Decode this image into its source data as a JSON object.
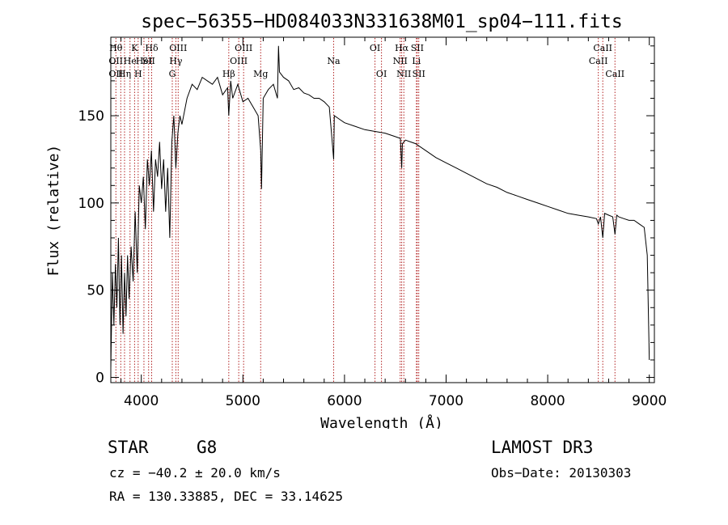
{
  "chart_data": {
    "type": "line",
    "title": "spec−56355−HD084033N331638M01_sp04−111.fits",
    "xlabel": "Wavelength (Å)",
    "ylabel": "Flux (relative)",
    "xlim": [
      3700,
      9050
    ],
    "ylim": [
      -3,
      195
    ],
    "xticks": [
      4000,
      5000,
      6000,
      7000,
      8000,
      9000
    ],
    "yticks": [
      0,
      50,
      100,
      150
    ],
    "line_color": "#000000",
    "marker_color": "#b22222",
    "series": [
      {
        "name": "flux",
        "x": [
          3700,
          3715,
          3730,
          3745,
          3760,
          3775,
          3790,
          3805,
          3820,
          3835,
          3850,
          3865,
          3880,
          3900,
          3920,
          3940,
          3960,
          3980,
          4000,
          4020,
          4040,
          4060,
          4080,
          4100,
          4120,
          4140,
          4160,
          4180,
          4200,
          4220,
          4240,
          4260,
          4280,
          4300,
          4320,
          4340,
          4360,
          4380,
          4400,
          4450,
          4500,
          4550,
          4600,
          4650,
          4700,
          4750,
          4800,
          4850,
          4861,
          4880,
          4900,
          4950,
          5000,
          5050,
          5100,
          5150,
          5175,
          5183,
          5200,
          5250,
          5300,
          5340,
          5350,
          5360,
          5400,
          5450,
          5500,
          5550,
          5600,
          5650,
          5700,
          5750,
          5800,
          5850,
          5893,
          5900,
          5950,
          6000,
          6100,
          6200,
          6300,
          6400,
          6500,
          6550,
          6563,
          6570,
          6600,
          6700,
          6800,
          6900,
          7000,
          7100,
          7200,
          7300,
          7400,
          7500,
          7600,
          7700,
          7800,
          7900,
          8000,
          8100,
          8200,
          8300,
          8400,
          8480,
          8498,
          8520,
          8542,
          8560,
          8600,
          8640,
          8662,
          8680,
          8700,
          8750,
          8800,
          8850,
          8900,
          8950,
          8980,
          9000
        ],
        "y": [
          5,
          60,
          30,
          65,
          40,
          80,
          30,
          70,
          25,
          60,
          35,
          70,
          45,
          75,
          55,
          95,
          60,
          110,
          100,
          115,
          85,
          125,
          110,
          130,
          95,
          125,
          115,
          135,
          108,
          125,
          95,
          120,
          80,
          135,
          150,
          120,
          140,
          150,
          145,
          160,
          168,
          165,
          172,
          170,
          168,
          172,
          162,
          166,
          150,
          170,
          160,
          168,
          158,
          160,
          155,
          150,
          130,
          108,
          160,
          165,
          168,
          160,
          190,
          175,
          172,
          170,
          165,
          166,
          163,
          162,
          160,
          160,
          158,
          155,
          125,
          150,
          148,
          146,
          144,
          142,
          141,
          140,
          138,
          137,
          120,
          134,
          136,
          134,
          130,
          126,
          123,
          120,
          117,
          114,
          111,
          109,
          106,
          104,
          102,
          100,
          98,
          96,
          94,
          93,
          92,
          91,
          88,
          92,
          80,
          94,
          93,
          92,
          82,
          93,
          92,
          91,
          90,
          90,
          88,
          86,
          70,
          10
        ]
      }
    ],
    "lines": [
      {
        "x": 3750,
        "labels": [
          {
            "text": "Hθ",
            "row": 1
          },
          {
            "text": "OII",
            "row": 2
          },
          {
            "text": "OII",
            "row": 3
          }
        ]
      },
      {
        "x": 3798,
        "labels": []
      },
      {
        "x": 3835,
        "labels": [
          {
            "text": "Hη",
            "row": 3
          }
        ]
      },
      {
        "x": 3889,
        "labels": [
          {
            "text": "He",
            "row": 2
          }
        ]
      },
      {
        "x": 3934,
        "labels": [
          {
            "text": "K",
            "row": 1
          }
        ]
      },
      {
        "x": 3969,
        "labels": [
          {
            "text": "H",
            "row": 3
          }
        ]
      },
      {
        "x": 4026,
        "labels": [
          {
            "text": "HeI",
            "row": 2
          }
        ]
      },
      {
        "x": 4072,
        "labels": [
          {
            "text": "SII",
            "row": 2
          }
        ]
      },
      {
        "x": 4102,
        "labels": [
          {
            "text": "Hδ",
            "row": 1
          }
        ]
      },
      {
        "x": 4305,
        "labels": [
          {
            "text": "G",
            "row": 3
          }
        ]
      },
      {
        "x": 4340,
        "labels": [
          {
            "text": "Hγ",
            "row": 2
          }
        ]
      },
      {
        "x": 4363,
        "labels": [
          {
            "text": "OIII",
            "row": 1
          }
        ]
      },
      {
        "x": 4861,
        "labels": [
          {
            "text": "Hβ",
            "row": 3
          }
        ]
      },
      {
        "x": 4959,
        "labels": [
          {
            "text": "OIII",
            "row": 2
          }
        ]
      },
      {
        "x": 5007,
        "labels": [
          {
            "text": "OIII",
            "row": 1
          }
        ]
      },
      {
        "x": 5175,
        "labels": [
          {
            "text": "Mg",
            "row": 3
          }
        ]
      },
      {
        "x": 5893,
        "labels": [
          {
            "text": "Na",
            "row": 2
          }
        ]
      },
      {
        "x": 6300,
        "labels": [
          {
            "text": "OI",
            "row": 1
          }
        ]
      },
      {
        "x": 6364,
        "labels": [
          {
            "text": "OI",
            "row": 3
          }
        ]
      },
      {
        "x": 6548,
        "labels": [
          {
            "text": "NII",
            "row": 2
          }
        ]
      },
      {
        "x": 6563,
        "labels": [
          {
            "text": "Hα",
            "row": 1
          }
        ]
      },
      {
        "x": 6584,
        "labels": [
          {
            "text": "NII",
            "row": 3
          }
        ]
      },
      {
        "x": 6708,
        "labels": [
          {
            "text": "Li",
            "row": 2
          }
        ]
      },
      {
        "x": 6716,
        "labels": [
          {
            "text": "SII",
            "row": 1
          }
        ]
      },
      {
        "x": 6731,
        "labels": [
          {
            "text": "SII",
            "row": 3
          }
        ]
      },
      {
        "x": 8498,
        "labels": [
          {
            "text": "CaII",
            "row": 2
          }
        ]
      },
      {
        "x": 8542,
        "labels": [
          {
            "text": "CaII",
            "row": 1
          }
        ]
      },
      {
        "x": 8662,
        "labels": [
          {
            "text": "CaII",
            "row": 3
          }
        ]
      }
    ]
  },
  "info": {
    "class_label": "STAR",
    "subclass": "G8",
    "survey": "LAMOST DR3",
    "cz": "cz = −40.2 ± 20.0 km/s",
    "obs_date": "Obs−Date: 20130303",
    "coords": "RA = 130.33885, DEC =  33.14625"
  }
}
